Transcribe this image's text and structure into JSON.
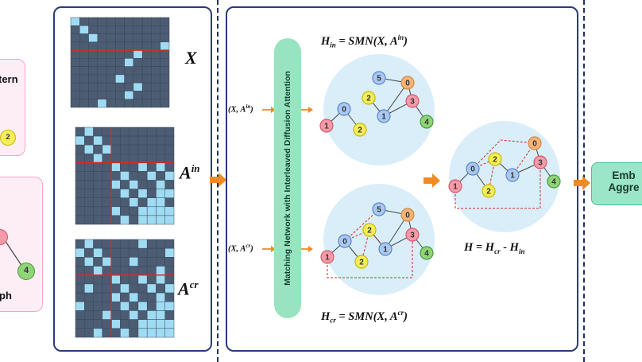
{
  "left_fragment": {
    "top_text": "tern",
    "node_2": "2",
    "node_4": "4",
    "bottom_text": "ph"
  },
  "matrices": {
    "x_label": "X",
    "ain_base": "A",
    "ain_sup": "in",
    "acr_base": "A",
    "acr_sup": "cr"
  },
  "inputs": {
    "top": {
      "pre": "(X, A",
      "sup": "in",
      "post": ")"
    },
    "bottom": {
      "pre": "(X, A",
      "sup": "cr",
      "post": ")"
    }
  },
  "smn_label": "Matching Network with Interleaved Diffusion Attention",
  "equations": {
    "top": {
      "lhs": "H",
      "lhs_sub": "in",
      "mid": " = SMN(X, A",
      "sup": "in",
      "end": ")"
    },
    "bottom": {
      "lhs": "H",
      "lhs_sub": "cr",
      "mid": " = SMN(X, A",
      "sup": "cr",
      "end": ")"
    },
    "result": {
      "h": "H = H",
      "sub1": "cr",
      "mid": " - H",
      "sub2": "in"
    }
  },
  "graph_nodes": [
    "0",
    "1",
    "2",
    "3",
    "4",
    "5"
  ],
  "embedding_box": {
    "line1": "Emb",
    "line2": "Aggre"
  },
  "colors": {
    "node_0": "#f5b27a",
    "node_1": "#f59aa8",
    "node_2": "#f5ee58",
    "node_3": "#f59aa8",
    "node_4": "#8fd476",
    "node_5": "#aac8f0",
    "node_blue": "#aac8f0",
    "matrix_dark": "#4c5c72",
    "matrix_light": "#9fdcf4",
    "arrow": "#f08a24",
    "circle_bg": "#d9eef9",
    "red_line": "#d42a2a"
  }
}
